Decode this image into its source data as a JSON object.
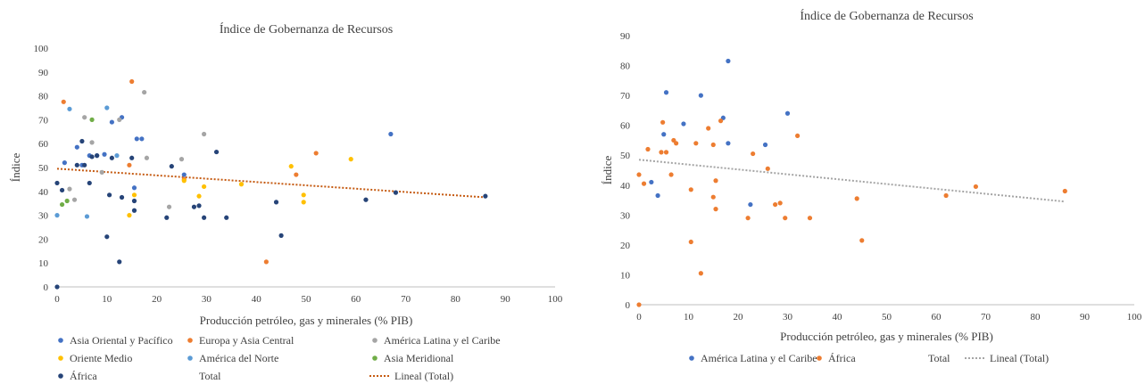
{
  "chart_data": [
    {
      "type": "scatter",
      "title": "Índice de Gobernanza de Recursos",
      "xlabel": "Producción petróleo, gas y minerales (% PIB)",
      "ylabel": "Índice",
      "xlim": [
        0,
        100
      ],
      "ylim": [
        0,
        100
      ],
      "xticks": [
        "0",
        "10",
        "20",
        "30",
        "40",
        "50",
        "60",
        "70",
        "80",
        "90",
        "100"
      ],
      "yticks": [
        "0",
        "10",
        "20",
        "30",
        "40",
        "50",
        "60",
        "70",
        "80",
        "90",
        "100"
      ],
      "grid": false,
      "legend_position": "bottom",
      "series": [
        {
          "name": "Asia Oriental y Pacífico",
          "color": "#4472C4",
          "points": [
            [
              1.5,
              52
            ],
            [
              4,
              58.5
            ],
            [
              5,
              51
            ],
            [
              6.5,
              55
            ],
            [
              8,
              55
            ],
            [
              9.5,
              55.5
            ],
            [
              11,
              69
            ],
            [
              13,
              71
            ],
            [
              15.5,
              41.5
            ],
            [
              16,
              62
            ],
            [
              17,
              62
            ],
            [
              25.5,
              47
            ],
            [
              67,
              64
            ]
          ]
        },
        {
          "name": "Europa y Asia Central",
          "color": "#ED7D31",
          "points": [
            [
              1.3,
              77.5
            ],
            [
              14.5,
              51
            ],
            [
              15,
              86
            ],
            [
              25.5,
              45
            ],
            [
              42,
              10.5
            ],
            [
              48,
              47
            ],
            [
              52,
              56
            ]
          ]
        },
        {
          "name": "América Latina y el Caribe",
          "color": "#A5A5A5",
          "points": [
            [
              2.5,
              41
            ],
            [
              3.5,
              36.5
            ],
            [
              5.5,
              71
            ],
            [
              7,
              60.5
            ],
            [
              9,
              48
            ],
            [
              12.5,
              70
            ],
            [
              17.5,
              81.5
            ],
            [
              18,
              54
            ],
            [
              22.5,
              33.5
            ],
            [
              25,
              53.5
            ],
            [
              29.5,
              64
            ],
            [
              62,
              36.5
            ]
          ]
        },
        {
          "name": "Oriente Medio",
          "color": "#FFC000",
          "points": [
            [
              14.5,
              30
            ],
            [
              15.5,
              38.5
            ],
            [
              25.5,
              44.5
            ],
            [
              28.5,
              38
            ],
            [
              29.5,
              42
            ],
            [
              37,
              43
            ],
            [
              47,
              50.5
            ],
            [
              49.5,
              38.5
            ],
            [
              49.5,
              35.5
            ],
            [
              59,
              53.5
            ]
          ]
        },
        {
          "name": "América del Norte",
          "color": "#5B9BD5",
          "points": [
            [
              0,
              30
            ],
            [
              2.5,
              74.5
            ],
            [
              6,
              29.5
            ],
            [
              10,
              75
            ],
            [
              12,
              55
            ]
          ]
        },
        {
          "name": "Asia Meridional",
          "color": "#70AD47",
          "points": [
            [
              1,
              34.5
            ],
            [
              2,
              36
            ],
            [
              7,
              70
            ]
          ]
        },
        {
          "name": "África",
          "color": "#264478",
          "points": [
            [
              0,
              0
            ],
            [
              0,
              43.5
            ],
            [
              1,
              40.5
            ],
            [
              4,
              51
            ],
            [
              5,
              61
            ],
            [
              5.5,
              51
            ],
            [
              6.5,
              43.5
            ],
            [
              7,
              54.5
            ],
            [
              8,
              55
            ],
            [
              10,
              21
            ],
            [
              10.5,
              38.5
            ],
            [
              11,
              54
            ],
            [
              12.5,
              10.5
            ],
            [
              13,
              37.5
            ],
            [
              15,
              54
            ],
            [
              15.5,
              36
            ],
            [
              15.5,
              32
            ],
            [
              22,
              29
            ],
            [
              23,
              50.5
            ],
            [
              27.5,
              33.5
            ],
            [
              28.5,
              34
            ],
            [
              29.5,
              29
            ],
            [
              32,
              56.5
            ],
            [
              34,
              29
            ],
            [
              44,
              35.5
            ],
            [
              45,
              21.5
            ],
            [
              62,
              36.5
            ],
            [
              68,
              39.5
            ],
            [
              86,
              38
            ]
          ]
        },
        {
          "name": "Total",
          "color": "none",
          "points": []
        }
      ],
      "trendline": {
        "name": "Lineal (Total)",
        "color": "#C55A11",
        "style": "dotted",
        "from": [
          0,
          49.5
        ],
        "to": [
          86,
          37.5
        ]
      }
    },
    {
      "type": "scatter",
      "title": "Índice de Gobernanza de Recursos",
      "xlabel": "Producción petróleo, gas y minerales (% PIB)",
      "ylabel": "Índice",
      "xlim": [
        0,
        100
      ],
      "ylim": [
        0,
        90
      ],
      "xticks": [
        "0",
        "10",
        "20",
        "30",
        "40",
        "50",
        "60",
        "70",
        "80",
        "90",
        "100"
      ],
      "yticks": [
        "0",
        "10",
        "20",
        "30",
        "40",
        "50",
        "60",
        "70",
        "80",
        "90"
      ],
      "grid": false,
      "legend_position": "bottom",
      "series": [
        {
          "name": "América Latina y el Caribe",
          "color": "#4472C4",
          "points": [
            [
              2.5,
              41
            ],
            [
              3.8,
              36.5
            ],
            [
              5,
              57
            ],
            [
              5.5,
              71
            ],
            [
              9,
              60.5
            ],
            [
              12.5,
              70
            ],
            [
              17,
              62.5
            ],
            [
              18,
              81.5
            ],
            [
              18,
              54
            ],
            [
              22.5,
              33.5
            ],
            [
              25.5,
              53.5
            ],
            [
              30,
              64
            ]
          ]
        },
        {
          "name": "África",
          "color": "#ED7D31",
          "points": [
            [
              0,
              0
            ],
            [
              0,
              43.5
            ],
            [
              1,
              40.5
            ],
            [
              1.8,
              52
            ],
            [
              4.5,
              51
            ],
            [
              4.8,
              61
            ],
            [
              5.5,
              51
            ],
            [
              6.5,
              43.5
            ],
            [
              7,
              55
            ],
            [
              7.5,
              54
            ],
            [
              10.5,
              21
            ],
            [
              10.5,
              38.5
            ],
            [
              11.5,
              54
            ],
            [
              12.5,
              10.5
            ],
            [
              14,
              59
            ],
            [
              15,
              53.5
            ],
            [
              15,
              36
            ],
            [
              15.5,
              32
            ],
            [
              15.5,
              41.5
            ],
            [
              16.5,
              61.5
            ],
            [
              22,
              29
            ],
            [
              23,
              50.5
            ],
            [
              26,
              45.5
            ],
            [
              27.5,
              33.5
            ],
            [
              28.5,
              34
            ],
            [
              29.5,
              29
            ],
            [
              32,
              56.5
            ],
            [
              34.5,
              29
            ],
            [
              44,
              35.5
            ],
            [
              45,
              21.5
            ],
            [
              62,
              36.5
            ],
            [
              68,
              39.5
            ],
            [
              86,
              38
            ]
          ]
        },
        {
          "name": "Total",
          "color": "none",
          "points": []
        }
      ],
      "trendline": {
        "name": "Lineal (Total)",
        "color": "#A5A5A5",
        "style": "dotted",
        "from": [
          0,
          48.5
        ],
        "to": [
          86,
          34.5
        ]
      }
    }
  ]
}
